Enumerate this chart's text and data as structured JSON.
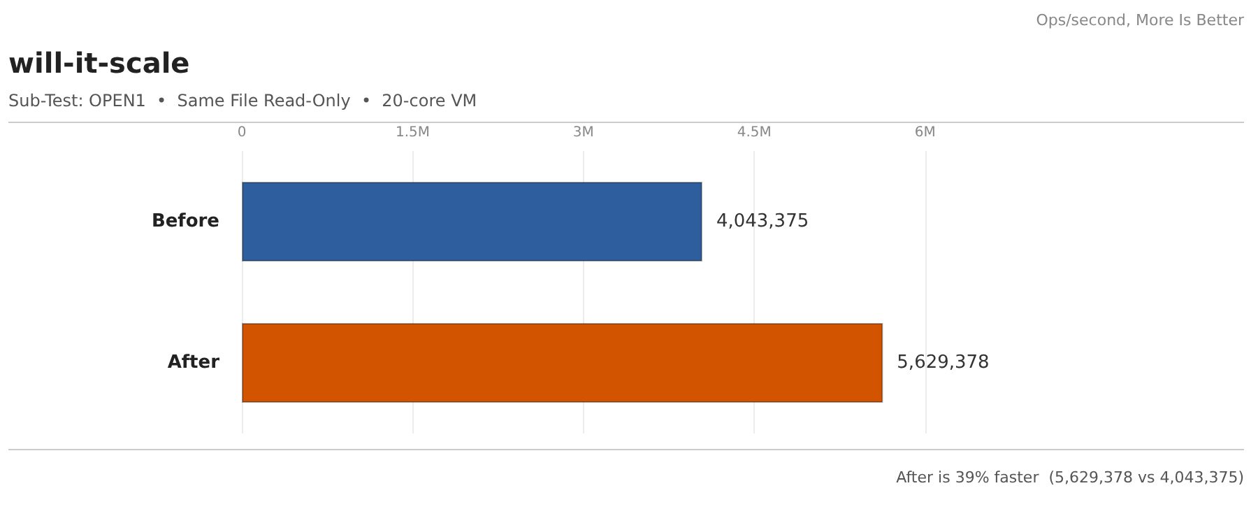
{
  "chart_data": {
    "type": "bar",
    "orientation": "horizontal",
    "title": "will-it-scale",
    "subtitle": "Sub-Test: OPEN1  •  Same File Read-Only  •  20-core VM",
    "annotations": [
      "Ops/second, More Is Better",
      "After is 39% faster  (5,629,378 vs 4,043,375)"
    ],
    "categories": [
      "Before",
      "After"
    ],
    "values": [
      4043375,
      5629378
    ],
    "colors": [
      "#2e5e9e",
      "#d35400"
    ],
    "value_labels": [
      "4,043,375",
      "5,629,378"
    ],
    "xlim": [
      0,
      8800000
    ],
    "xticks": [
      0,
      {
        "value": 1500000,
        "label": "1.5M"
      },
      {
        "value": 3000000,
        "label": "3M"
      },
      {
        "value": 4500000,
        "label": "4.5M"
      },
      {
        "value": 6000000,
        "label": "6M"
      }
    ],
    "grid": "x"
  }
}
